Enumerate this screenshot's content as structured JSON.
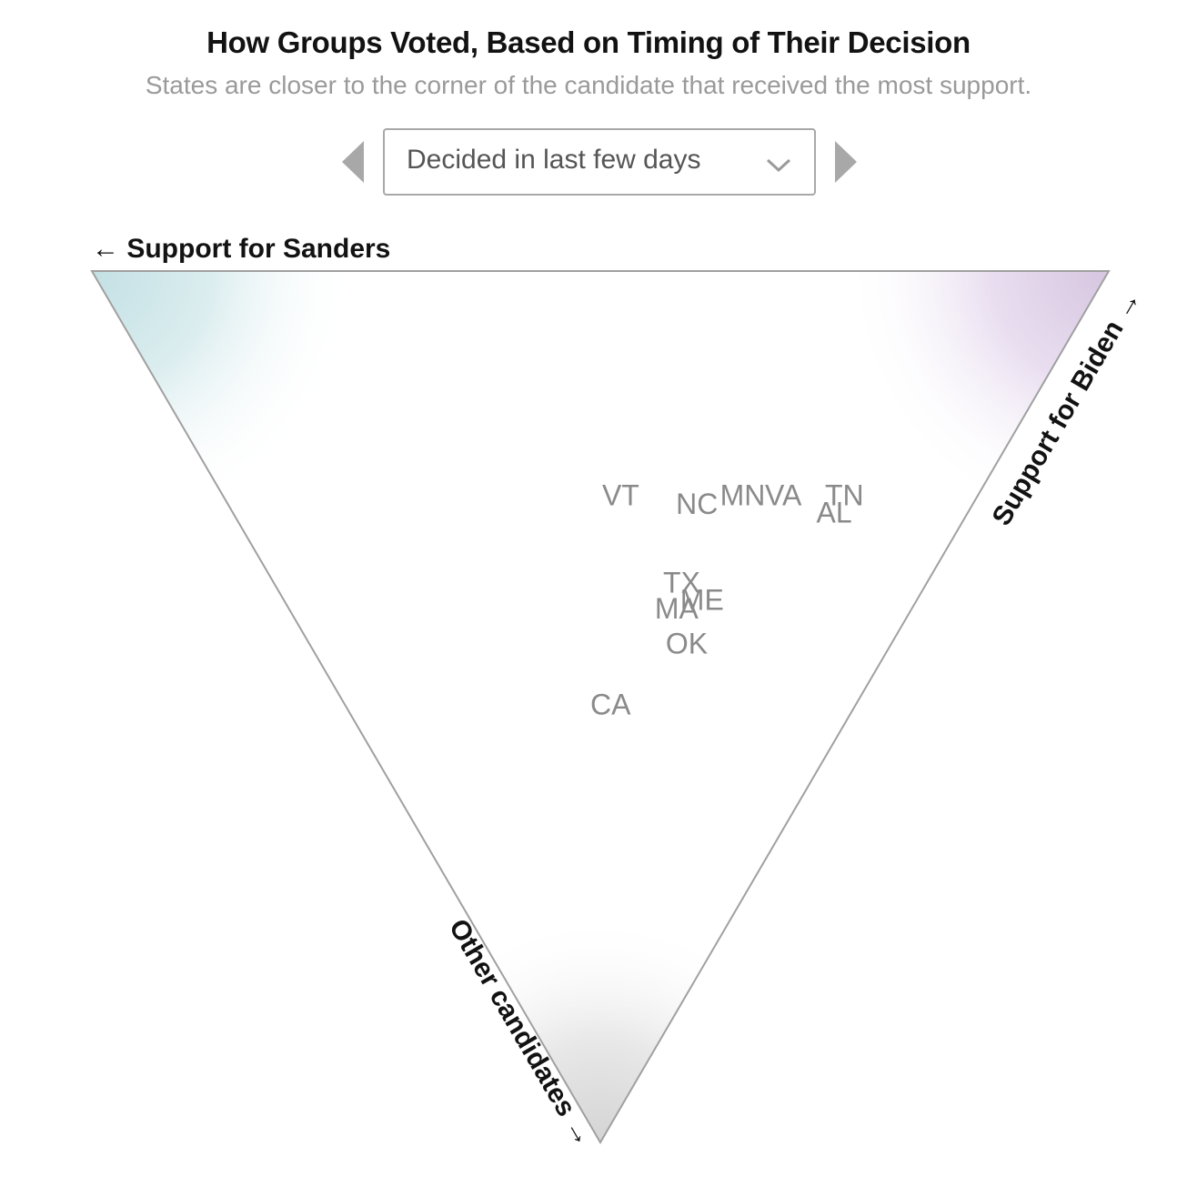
{
  "header": {
    "title": "How Groups Voted, Based on Timing of Their Decision",
    "subtitle": "States are closer to the corner of the candidate that received the most support."
  },
  "selector": {
    "selected": "Decided in last few days",
    "prev_icon": "triangle-left-icon",
    "next_icon": "triangle-right-icon",
    "dropdown_icon": "chevron-down-icon"
  },
  "colors": {
    "sanders_corner": "#cfe5e8",
    "biden_corner": "#dccbe3",
    "other_corner": "#d9d9d9",
    "triangle_stroke": "#a0a0a0",
    "state_label": "#8a8a8a"
  },
  "chart_data": {
    "type": "scatter",
    "subtype": "ternary",
    "title": "How Groups Voted, Based on Timing of Their Decision",
    "subtitle": "States are closer to the corner of the candidate that received the most support.",
    "axes": {
      "sanders": "← Support for Sanders",
      "biden": "Support for Biden →",
      "other": "Other candidates →"
    },
    "points": [
      {
        "label": "TN",
        "sanders": 0.13,
        "biden": 0.61,
        "other": 0.26
      },
      {
        "label": "AL",
        "sanders": 0.13,
        "biden": 0.59,
        "other": 0.28
      },
      {
        "label": "VA",
        "sanders": 0.19,
        "biden": 0.55,
        "other": 0.26
      },
      {
        "label": "MN",
        "sanders": 0.23,
        "biden": 0.51,
        "other": 0.26
      },
      {
        "label": "NC",
        "sanders": 0.27,
        "biden": 0.46,
        "other": 0.27
      },
      {
        "label": "VT",
        "sanders": 0.35,
        "biden": 0.39,
        "other": 0.26
      },
      {
        "label": "TX",
        "sanders": 0.24,
        "biden": 0.4,
        "other": 0.36
      },
      {
        "label": "ME",
        "sanders": 0.21,
        "biden": 0.41,
        "other": 0.38
      },
      {
        "label": "MA",
        "sanders": 0.23,
        "biden": 0.38,
        "other": 0.39
      },
      {
        "label": "OK",
        "sanders": 0.2,
        "biden": 0.37,
        "other": 0.43
      },
      {
        "label": "CA",
        "sanders": 0.24,
        "biden": 0.26,
        "other": 0.5
      }
    ]
  }
}
